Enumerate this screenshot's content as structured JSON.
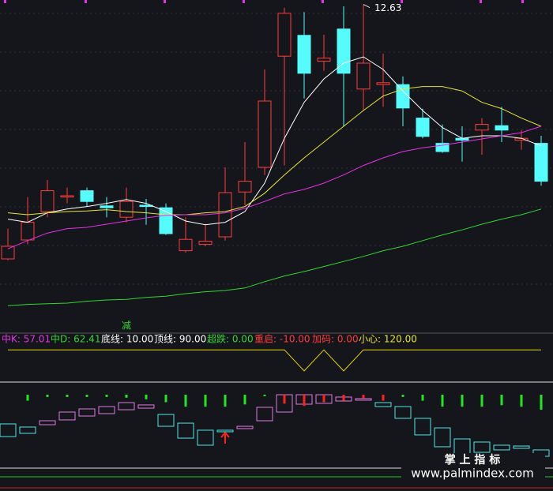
{
  "chart_data": {
    "type": "candlestick",
    "ylim": [
      7.45,
      12.7
    ],
    "grid": true,
    "up_color": "#ff3c3c",
    "down_color": "#54fcfc",
    "open": [
      8.6,
      8.9,
      9.35,
      9.58,
      9.68,
      9.44,
      9.26,
      9.45,
      9.41,
      8.73,
      8.83,
      8.95,
      9.66,
      10.05,
      11.81,
      12.14,
      11.73,
      12.24,
      11.29,
      11.36,
      11.36,
      10.83,
      10.43,
      10.51,
      10.64,
      10.71,
      10.48,
      10.43
    ],
    "close": [
      8.8,
      9.18,
      9.68,
      9.6,
      9.51,
      9.41,
      9.51,
      9.43,
      9.0,
      8.91,
      8.88,
      9.65,
      9.83,
      11.1,
      12.49,
      11.54,
      11.78,
      11.54,
      11.7,
      11.39,
      10.99,
      10.54,
      10.3,
      10.48,
      10.73,
      10.64,
      10.51,
      9.83
    ],
    "high": [
      9.08,
      9.58,
      9.85,
      9.73,
      9.73,
      9.58,
      9.73,
      9.55,
      9.48,
      9.26,
      9.16,
      10.05,
      10.45,
      11.6,
      12.58,
      12.51,
      12.15,
      12.6,
      12.63,
      11.85,
      11.49,
      10.98,
      10.73,
      10.7,
      10.83,
      11.01,
      10.64,
      10.55
    ],
    "low": [
      8.58,
      8.83,
      9.26,
      9.48,
      9.43,
      9.26,
      9.18,
      9.14,
      8.98,
      8.7,
      8.8,
      8.89,
      9.45,
      9.93,
      10.08,
      11.14,
      11.58,
      10.7,
      10.95,
      11.01,
      10.7,
      10.51,
      10.28,
      10.14,
      10.25,
      10.45,
      10.33,
      9.76
    ],
    "high_label": "12.63",
    "signal_text": "减",
    "series": [
      {
        "color": "#ffffff",
        "values": [
          9.23,
          9.18,
          9.33,
          9.39,
          9.43,
          9.48,
          9.54,
          9.48,
          9.35,
          9.2,
          9.14,
          9.18,
          9.35,
          9.8,
          10.51,
          11.08,
          11.45,
          11.7,
          11.8,
          11.6,
          11.26,
          10.95,
          10.68,
          10.51,
          10.55,
          10.55,
          10.51,
          10.39
        ]
      },
      {
        "color": "#e6e632",
        "values": [
          9.33,
          9.3,
          9.33,
          9.35,
          9.36,
          9.38,
          9.35,
          9.33,
          9.3,
          9.3,
          9.33,
          9.35,
          9.43,
          9.64,
          9.93,
          10.2,
          10.45,
          10.7,
          10.95,
          11.18,
          11.29,
          11.33,
          11.33,
          11.26,
          11.08,
          10.98,
          10.83,
          10.7
        ]
      },
      {
        "color": "#e632e6",
        "values": [
          8.76,
          8.89,
          9.01,
          9.08,
          9.1,
          9.15,
          9.2,
          9.25,
          9.29,
          9.3,
          9.3,
          9.33,
          9.4,
          9.51,
          9.63,
          9.7,
          9.8,
          9.93,
          10.08,
          10.2,
          10.3,
          10.36,
          10.4,
          10.45,
          10.5,
          10.55,
          10.6,
          10.7
        ]
      },
      {
        "color": "#32d732",
        "values": [
          7.86,
          7.88,
          7.89,
          7.9,
          7.93,
          7.95,
          7.96,
          7.99,
          8.01,
          8.05,
          8.08,
          8.1,
          8.14,
          8.24,
          8.33,
          8.4,
          8.48,
          8.56,
          8.64,
          8.73,
          8.8,
          8.89,
          8.98,
          9.06,
          9.15,
          9.23,
          9.3,
          9.39
        ]
      }
    ]
  },
  "indicator_bar": {
    "items": [
      {
        "text": "中K: 57.01",
        "color": "#e632e6"
      },
      {
        "text": "中D: 62.41",
        "color": "#32d732"
      },
      {
        "text": "底线: 10.00",
        "color": "#ffffff"
      },
      {
        "text": "顶线: 90.00",
        "color": "#ffffff"
      },
      {
        "text": "超跌: 0.00",
        "color": "#32d732"
      },
      {
        "text": "重启: -10.00",
        "color": "#ff3c3c"
      },
      {
        "text": "加码: 0.00",
        "color": "#ff3c3c"
      },
      {
        "text": "小心: 120.00",
        "color": "#e6e632"
      }
    ]
  },
  "oscillator": {
    "ylim": [
      -10,
      130
    ],
    "color": "#e6d800",
    "values": [
      120,
      120,
      120,
      120,
      120,
      120,
      120,
      120,
      120,
      120,
      120,
      120,
      120,
      120,
      120,
      37,
      120,
      37,
      120,
      120,
      120,
      120,
      120,
      120,
      120,
      120,
      120,
      120
    ]
  },
  "signal_panel": {
    "ylim": [
      0,
      100
    ],
    "up": {
      "color": "#e07ae0",
      "high": [
        null,
        null,
        60,
        71.6,
        75.8,
        78.9,
        84.2,
        81.1,
        null,
        null,
        null,
        null,
        52.6,
        77.9,
        94.7,
        94.7,
        94.7,
        91.6,
        89.5,
        null,
        null,
        null,
        null,
        null,
        null,
        null,
        null,
        null
      ],
      "low": [
        null,
        null,
        54.7,
        61.1,
        66.3,
        69.5,
        74.7,
        76.8,
        null,
        null,
        null,
        null,
        49.5,
        60,
        71.6,
        82.1,
        83.2,
        86.3,
        87.4,
        null,
        null,
        null,
        null,
        null,
        null,
        null,
        null,
        null
      ]
    },
    "down": {
      "color": "#4ee6e6",
      "high": [
        55.8,
        51.6,
        null,
        null,
        null,
        null,
        null,
        null,
        68.4,
        56.8,
        47.4,
        47.4,
        null,
        null,
        null,
        null,
        null,
        null,
        null,
        84.2,
        78.9,
        63.2,
        50.5,
        35.8,
        31.6,
        27.4,
        26.3,
        21.1
      ],
      "low": [
        38.9,
        43.2,
        null,
        null,
        null,
        null,
        null,
        null,
        52.6,
        36.8,
        27.4,
        45.3,
        null,
        null,
        null,
        null,
        null,
        null,
        null,
        78.9,
        63.2,
        41.1,
        25.3,
        15.8,
        17.9,
        21.1,
        23.2,
        12.6
      ]
    },
    "green_sticks": {
      "color": "#22e622",
      "values": [
        null,
        8,
        3,
        3,
        3,
        3,
        4,
        6,
        10,
        16,
        16,
        16,
        13,
        2,
        null,
        null,
        null,
        null,
        null,
        null,
        3,
        8,
        16,
        16,
        16,
        14,
        16,
        20
      ]
    },
    "red_sticks": {
      "color": "#ff2020",
      "values": [
        null,
        null,
        null,
        null,
        null,
        null,
        null,
        null,
        null,
        null,
        null,
        null,
        null,
        null,
        12,
        15,
        10,
        8,
        5,
        8,
        null,
        null,
        null,
        null,
        null,
        null,
        null,
        null
      ]
    }
  },
  "watermark": {
    "title": "掌 上 指 标",
    "url": "www.palmindex.com"
  }
}
